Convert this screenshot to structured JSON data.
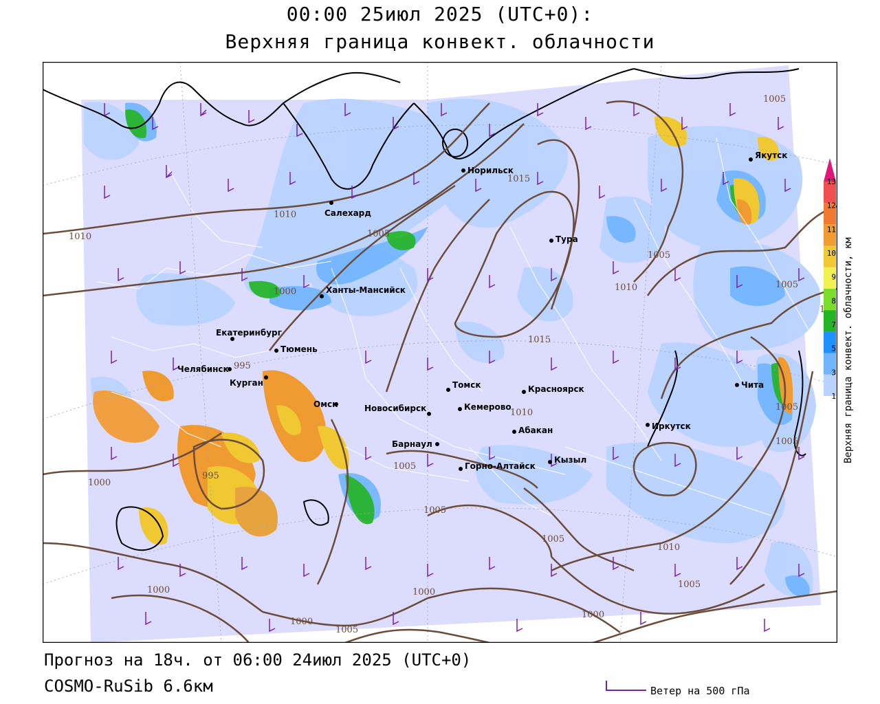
{
  "title": {
    "line1": "00:00 25июл 2025 (UTC+0):",
    "line2": "Верхняя граница конвект. облачности"
  },
  "footer": {
    "forecast": "Прогноз на 18ч. от 06:00 24июл 2025 (UTC+0)",
    "model": "COSMO-RuSib 6.6км"
  },
  "colorbar": {
    "title": "Верхняя граница конвект. облачности, км",
    "ticks": [
      "1",
      "3",
      "5",
      "7",
      "8",
      "9",
      "10",
      "11",
      "12",
      "13"
    ],
    "colors": [
      "#b9d3ff",
      "#6fb4ff",
      "#1e90ff",
      "#22b422",
      "#7cdc2c",
      "#f0f050",
      "#f0c832",
      "#f09a32",
      "#f07a32",
      "#f05050",
      "#e0187a"
    ]
  },
  "legend": {
    "wind_label": "Ветер на 500 гПа",
    "wind_color": "#7a1fb5"
  },
  "colors": {
    "background": "#dcdcff",
    "isobar": "#6b4b3a",
    "coast": "#000000",
    "borders": "#ffffff"
  },
  "cities": [
    {
      "name": "Норильск"
    },
    {
      "name": "Салехард"
    },
    {
      "name": "Тура"
    },
    {
      "name": "Якутск"
    },
    {
      "name": "Ханты-Мансийск"
    },
    {
      "name": "Екатеринбург"
    },
    {
      "name": "Тюмень"
    },
    {
      "name": "Челябинск"
    },
    {
      "name": "Курган"
    },
    {
      "name": "Омск"
    },
    {
      "name": "Новосибирск"
    },
    {
      "name": "Томск"
    },
    {
      "name": "Кемерово"
    },
    {
      "name": "Красноярск"
    },
    {
      "name": "Барнаул"
    },
    {
      "name": "Абакан"
    },
    {
      "name": "Горно-Алтайск"
    },
    {
      "name": "Кызыл"
    },
    {
      "name": "Иркутск"
    },
    {
      "name": "Чита"
    }
  ],
  "isobar_labels": [
    "1005",
    "1015",
    "1010",
    "1010",
    "1005",
    "1005",
    "1010",
    "1005",
    "1000",
    "1010",
    "1015",
    "995",
    "1010",
    "1005",
    "1005",
    "1005",
    "995",
    "1000",
    "1005",
    "1005",
    "1010",
    "1005",
    "1000",
    "1000",
    "1000",
    "1005",
    "1000"
  ]
}
